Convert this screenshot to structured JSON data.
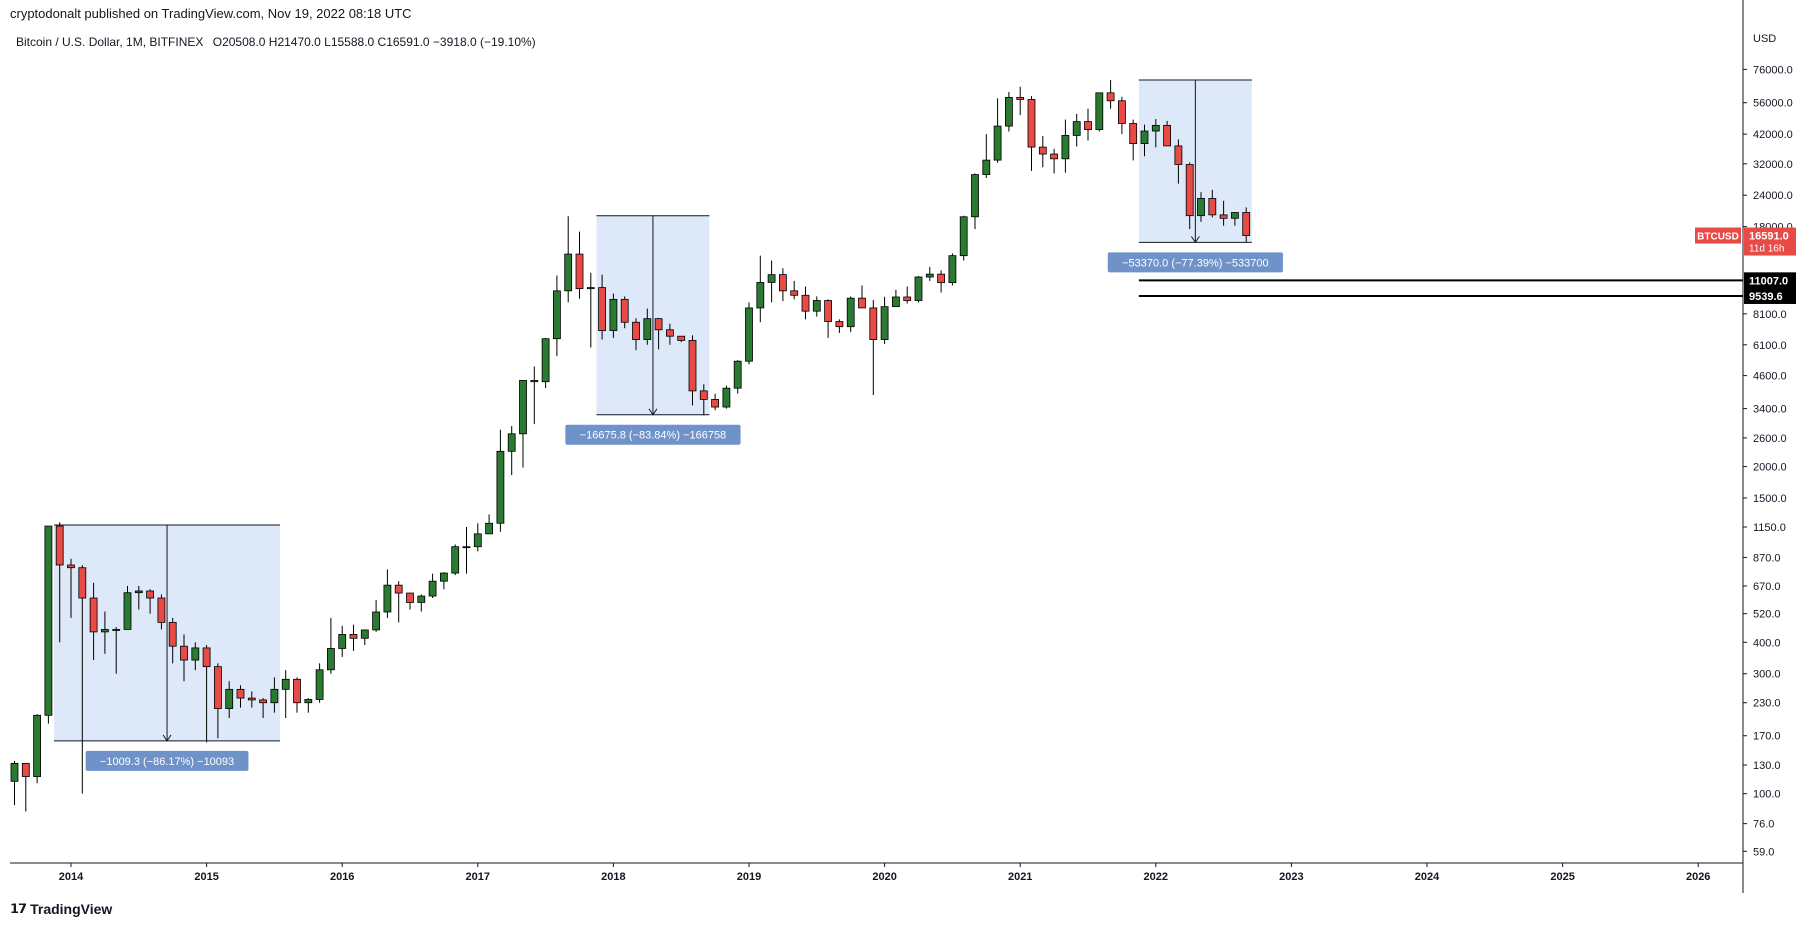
{
  "header": {
    "published_line": "cryptodonalt published on TradingView.com, Nov 19, 2022 08:18 UTC"
  },
  "legend": {
    "symbol_line": "Bitcoin / U.S. Dollar, 1M, BITFINEX",
    "ohlc": "O20508.0  H21470.0  L15588.0  C16591.0  −3918.0 (−19.10%)"
  },
  "footer": {
    "brand": "TradingView"
  },
  "colors": {
    "up": "#2a7a32",
    "down": "#e84a45",
    "box_fill": "#dde9f9",
    "label_bg": "#6f93c8",
    "price_badge": "#e84a45"
  },
  "chart_data": {
    "type": "candlestick",
    "scale": "log",
    "currency_label": "USD",
    "x_ticks": [
      "2014",
      "2015",
      "2016",
      "2017",
      "2018",
      "2019",
      "2020",
      "2021",
      "2022",
      "2023",
      "2024",
      "2025",
      "2026"
    ],
    "y_ticks": [
      76000,
      56000,
      42000,
      32000,
      24000,
      18000,
      8100,
      6100,
      4600,
      3400,
      2600,
      2000,
      1500,
      1150,
      870,
      670,
      520,
      400,
      300,
      230,
      170,
      130,
      100,
      76,
      59
    ],
    "y_tick_labels": [
      "76000.0",
      "56000.0",
      "42000.0",
      "32000.0",
      "24000.0",
      "18000.0",
      "8100.0",
      "6100.0",
      "4600.0",
      "3400.0",
      "2600.0",
      "2000.0",
      "1500.0",
      "1150.0",
      "870.0",
      "670.0",
      "520.0",
      "400.0",
      "300.0",
      "230.0",
      "170.0",
      "130.0",
      "100.0",
      "76.0",
      "59.0"
    ],
    "ylim": [
      53,
      95000
    ],
    "start": "2013-08",
    "candles": [
      [
        112,
        135,
        90,
        132
      ],
      [
        132,
        127,
        85,
        117
      ],
      [
        117,
        207,
        110,
        205
      ],
      [
        205,
        1160,
        190,
        1160
      ],
      [
        1160,
        1200,
        400,
        812
      ],
      [
        812,
        860,
        500,
        792
      ],
      [
        792,
        811,
        100,
        600
      ],
      [
        600,
        690,
        340,
        440
      ],
      [
        440,
        530,
        360,
        450
      ],
      [
        450,
        460,
        300,
        450
      ],
      [
        450,
        670,
        450,
        630
      ],
      [
        630,
        670,
        540,
        640
      ],
      [
        640,
        650,
        520,
        600
      ],
      [
        600,
        620,
        450,
        480
      ],
      [
        480,
        500,
        330,
        386
      ],
      [
        386,
        430,
        280,
        340
      ],
      [
        340,
        400,
        310,
        380
      ],
      [
        380,
        390,
        160,
        320
      ],
      [
        320,
        330,
        166,
        218
      ],
      [
        218,
        280,
        200,
        260
      ],
      [
        260,
        270,
        220,
        240
      ],
      [
        240,
        255,
        220,
        236
      ],
      [
        236,
        240,
        200,
        230
      ],
      [
        230,
        290,
        210,
        260
      ],
      [
        260,
        310,
        200,
        285
      ],
      [
        285,
        290,
        210,
        230
      ],
      [
        230,
        240,
        210,
        237
      ],
      [
        237,
        330,
        230,
        311
      ],
      [
        311,
        500,
        300,
        378
      ],
      [
        378,
        465,
        350,
        430
      ],
      [
        430,
        470,
        370,
        415
      ],
      [
        415,
        450,
        390,
        448
      ],
      [
        448,
        590,
        440,
        528
      ],
      [
        528,
        780,
        500,
        675
      ],
      [
        675,
        700,
        480,
        628
      ],
      [
        628,
        630,
        540,
        576
      ],
      [
        576,
        620,
        530,
        611
      ],
      [
        611,
        750,
        600,
        700
      ],
      [
        700,
        760,
        650,
        754
      ],
      [
        754,
        980,
        740,
        960
      ],
      [
        960,
        1150,
        750,
        960
      ],
      [
        960,
        1190,
        920,
        1080
      ],
      [
        1080,
        1290,
        1080,
        1190
      ],
      [
        1190,
        2800,
        1100,
        2300
      ],
      [
        2300,
        2900,
        1850,
        2700
      ],
      [
        2700,
        4400,
        1980,
        4400
      ],
      [
        4400,
        5000,
        2950,
        4350
      ],
      [
        4350,
        6500,
        4100,
        6450
      ],
      [
        6450,
        11500,
        5500,
        10000
      ],
      [
        10000,
        19800,
        9000,
        14000
      ],
      [
        14000,
        17200,
        9300,
        10200
      ],
      [
        10200,
        11800,
        5950,
        10300
      ],
      [
        10300,
        11600,
        6400,
        6950
      ],
      [
        6950,
        9750,
        6500,
        9250
      ],
      [
        9250,
        9500,
        7100,
        7500
      ],
      [
        7500,
        7780,
        5800,
        6400
      ],
      [
        6400,
        8500,
        6100,
        7750
      ],
      [
        7750,
        7800,
        5850,
        7000
      ],
      [
        7000,
        7400,
        6100,
        6600
      ],
      [
        6600,
        6600,
        6250,
        6350
      ],
      [
        6350,
        6650,
        3500,
        4000
      ],
      [
        4000,
        4250,
        3200,
        3700
      ],
      [
        3700,
        3900,
        3350,
        3450
      ],
      [
        3450,
        4200,
        3400,
        4100
      ],
      [
        4100,
        5300,
        3900,
        5250
      ],
      [
        5250,
        9000,
        5100,
        8550
      ],
      [
        8550,
        13800,
        7500,
        10800
      ],
      [
        10800,
        13200,
        9000,
        11600
      ],
      [
        11600,
        12300,
        9100,
        10000
      ],
      [
        10000,
        10950,
        9250,
        9600
      ],
      [
        9600,
        10400,
        7700,
        8300
      ],
      [
        8300,
        9500,
        7900,
        9150
      ],
      [
        9150,
        9250,
        6500,
        7550
      ],
      [
        7550,
        7700,
        6800,
        7200
      ],
      [
        7200,
        9500,
        6850,
        9350
      ],
      [
        9350,
        10500,
        8550,
        8550
      ],
      [
        8550,
        9200,
        3850,
        6400
      ],
      [
        6400,
        9470,
        6150,
        8650
      ],
      [
        8650,
        10100,
        8650,
        9450
      ],
      [
        9450,
        10400,
        8900,
        9150
      ],
      [
        9150,
        11450,
        9000,
        11350
      ],
      [
        11350,
        12450,
        10950,
        11650
      ],
      [
        11650,
        12050,
        9850,
        10780
      ],
      [
        10780,
        14100,
        10500,
        13800
      ],
      [
        13800,
        19900,
        13200,
        19700
      ],
      [
        19700,
        29300,
        17600,
        29000
      ],
      [
        29000,
        42000,
        28100,
        33100
      ],
      [
        33100,
        58300,
        32300,
        45200
      ],
      [
        45200,
        61800,
        43000,
        58800
      ],
      [
        58800,
        64800,
        50000,
        57700
      ],
      [
        57700,
        59500,
        30000,
        37300
      ],
      [
        37300,
        41300,
        31000,
        35000
      ],
      [
        35000,
        36700,
        29300,
        33500
      ],
      [
        33500,
        48000,
        29500,
        41500
      ],
      [
        41500,
        50500,
        37500,
        47100
      ],
      [
        47100,
        53000,
        39600,
        43800
      ],
      [
        43800,
        61500,
        43000,
        61300
      ],
      [
        61300,
        68900,
        53000,
        57000
      ],
      [
        57000,
        59100,
        42000,
        46300
      ],
      [
        46300,
        48000,
        33000,
        38500
      ],
      [
        38500,
        45800,
        34300,
        43200
      ],
      [
        43200,
        48200,
        37200,
        45500
      ],
      [
        45500,
        47400,
        37700,
        37700
      ],
      [
        37700,
        40000,
        26700,
        31800
      ],
      [
        31800,
        32400,
        17600,
        19900
      ],
      [
        19900,
        24700,
        18800,
        23300
      ],
      [
        23300,
        25200,
        19600,
        20050
      ],
      [
        20050,
        22800,
        18150,
        19430
      ],
      [
        19430,
        20500,
        18150,
        20490
      ],
      [
        20490,
        21470,
        15588,
        16591
      ]
    ],
    "annotations": [
      {
        "label": "−1009.3 (−86.17%) −10093",
        "from": 3.5,
        "to": 23.5,
        "top": 1171.5,
        "bottom": 162.2,
        "arrow_at": 13.5
      },
      {
        "label": "−16675.8 (−83.84%) −166758",
        "from": 51.5,
        "to": 61.5,
        "top": 19891,
        "bottom": 3215,
        "arrow_at": 56.5
      },
      {
        "label": "−53370.0 (−77.39%) −533700",
        "from": 99.5,
        "to": 109.5,
        "top": 68958,
        "bottom": 15588,
        "arrow_at": 104.5
      }
    ],
    "h_lines": [
      {
        "value": 11007.0,
        "label": "11007.0"
      },
      {
        "value": 9539.6,
        "label": "9539.6"
      }
    ],
    "last_price": {
      "symbol": "BTCUSD",
      "value": 16591.0,
      "label": "16591.0",
      "countdown": "11d 16h"
    }
  }
}
